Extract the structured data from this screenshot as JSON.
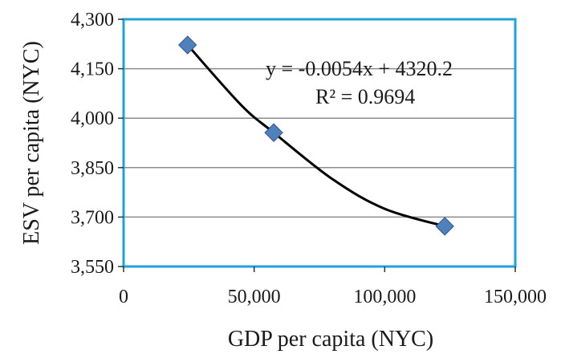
{
  "chart_data": {
    "type": "scatter",
    "xlabel": "GDP per capita (NYC)",
    "ylabel": "ESV per capita (NYC)",
    "xlim": [
      0,
      150000
    ],
    "ylim": [
      3550,
      4300
    ],
    "x_ticks": [
      0,
      50000,
      100000,
      150000
    ],
    "x_tick_labels": [
      "0",
      "50,000",
      "100,000",
      "150,000"
    ],
    "y_ticks": [
      3550,
      3700,
      3850,
      4000,
      4150,
      4300
    ],
    "y_tick_labels": [
      "3,550",
      "3,700",
      "3,850",
      "4,000",
      "4,150",
      "4,300"
    ],
    "grid": "horizontal",
    "points": [
      {
        "x": 24500,
        "y": 4222
      },
      {
        "x": 57500,
        "y": 3956
      },
      {
        "x": 123000,
        "y": 3672
      }
    ],
    "trendline": {
      "type": "polynomial",
      "points": [
        {
          "x": 24500,
          "y": 4222
        },
        {
          "x": 45000,
          "y": 4040
        },
        {
          "x": 57500,
          "y": 3956
        },
        {
          "x": 80000,
          "y": 3815
        },
        {
          "x": 100000,
          "y": 3725
        },
        {
          "x": 123000,
          "y": 3672
        }
      ]
    },
    "annotations": {
      "equation": "y = -0.0054x + 4320.2",
      "r_squared": "R² = 0.9694"
    },
    "colors": {
      "marker": "#4f81bd",
      "marker_edge": "#2f5597",
      "plot_border": "#1ea1dc",
      "grid": "#8c8c8c",
      "trendline": "#000000"
    }
  }
}
